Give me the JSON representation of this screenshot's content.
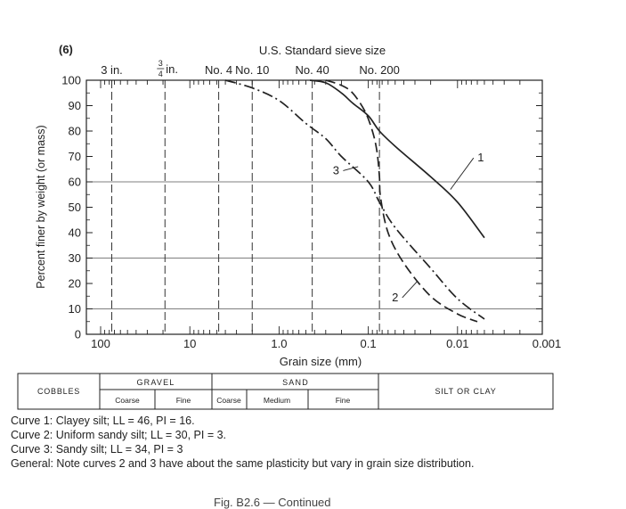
{
  "panel_label": "(6)",
  "figure_caption": "Fig. B2.6 — Continued",
  "notes": [
    "Curve 1:  Clayey silt; LL = 46, PI = 16.",
    "Curve 2:  Uniform sandy silt; LL = 30, PI = 3.",
    "Curve 3:  Sandy silt; LL = 34, PI = 3",
    "General:  Note curves 2 and 3 have about the same plasticity but vary in grain size distribution."
  ],
  "soil_table": {
    "cobbles": "COBBLES",
    "gravel": "GRAVEL",
    "sand": "SAND",
    "silt_clay": "SILT OR CLAY",
    "gravel_sub": [
      "Coarse",
      "Fine"
    ],
    "sand_sub": [
      "Coarse",
      "Medium",
      "Fine"
    ]
  },
  "chart_data": {
    "type": "line",
    "title": "U.S. Standard sieve size",
    "xlabel": "Grain size (mm)",
    "ylabel": "Percent finer by weight (or mass)",
    "x_scale": "log",
    "x_reversed": true,
    "xlim": [
      100,
      0.001
    ],
    "ylim": [
      0,
      100
    ],
    "x_ticks": [
      {
        "value": 100,
        "label": "100"
      },
      {
        "value": 10,
        "label": "10"
      },
      {
        "value": 1,
        "label": "1.0"
      },
      {
        "value": 0.1,
        "label": "0.1"
      },
      {
        "value": 0.01,
        "label": "0.01"
      },
      {
        "value": 0.001,
        "label": "0.001"
      }
    ],
    "y_ticks": [
      0,
      10,
      20,
      30,
      40,
      50,
      60,
      70,
      80,
      90,
      100
    ],
    "horizontal_grid": [
      10,
      30,
      60
    ],
    "sieves": [
      {
        "label": "3 in.",
        "size": 75
      },
      {
        "label": "3/4 in.",
        "size": 19
      },
      {
        "label": "No. 4",
        "size": 4.75
      },
      {
        "label": "No. 10",
        "size": 2.0
      },
      {
        "label": "No. 40",
        "size": 0.425
      },
      {
        "label": "No. 200",
        "size": 0.075
      }
    ],
    "series": [
      {
        "name": "1",
        "style": "solid",
        "x": [
          0.45,
          0.3,
          0.2,
          0.15,
          0.1,
          0.075,
          0.05,
          0.02,
          0.01,
          0.005
        ],
        "y": [
          100,
          99,
          95,
          91,
          86,
          80,
          74,
          62,
          52,
          38
        ]
      },
      {
        "name": "2",
        "style": "dashed",
        "x": [
          0.3,
          0.2,
          0.15,
          0.11,
          0.09,
          0.08,
          0.075,
          0.073,
          0.06,
          0.04,
          0.02,
          0.01,
          0.006
        ],
        "y": [
          100,
          98,
          95,
          88,
          80,
          72,
          62,
          54,
          40,
          28,
          15,
          8,
          5
        ]
      },
      {
        "name": "3",
        "style": "dashdot",
        "x": [
          4.0,
          2.0,
          1.0,
          0.5,
          0.3,
          0.2,
          0.1,
          0.075,
          0.05,
          0.02,
          0.01,
          0.005
        ],
        "y": [
          100,
          97,
          92,
          83,
          77,
          70,
          60,
          52,
          42,
          26,
          14,
          6
        ]
      }
    ]
  }
}
